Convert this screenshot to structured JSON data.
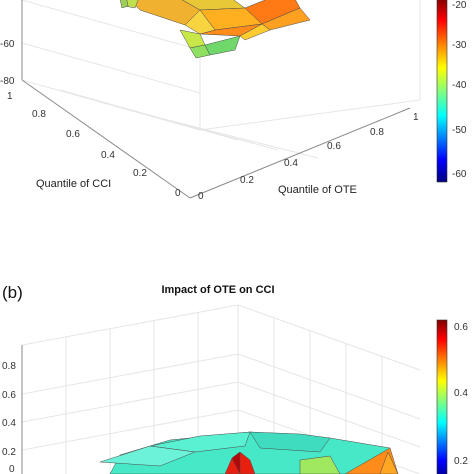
{
  "chart_data": [
    {
      "type": "surface",
      "panel_label": "",
      "title": "",
      "xlabel": "Quantile of OTE",
      "ylabel": "Quantile of CCI",
      "zlabel": "",
      "x_ticks": [
        "0",
        "0.2",
        "0.4",
        "0.6",
        "0.8",
        "1"
      ],
      "y_ticks": [
        "0",
        "0.2",
        "0.4",
        "0.6",
        "0.8",
        "1"
      ],
      "z_ticks": [
        "-60",
        "-80"
      ],
      "zlim": [
        -80,
        0
      ],
      "colorbar_ticks": [
        "-20",
        "-30",
        "-40",
        "-50",
        "-60"
      ],
      "colorbar_range": [
        -65,
        -15
      ],
      "colormap": "jet",
      "x": [
        0.05,
        0.1,
        0.15,
        0.2,
        0.25,
        0.3,
        0.35,
        0.4,
        0.45,
        0.5,
        0.55,
        0.6,
        0.65,
        0.7,
        0.75,
        0.8,
        0.85,
        0.9,
        0.95
      ],
      "y": [
        0.05,
        0.1,
        0.15,
        0.2,
        0.25,
        0.3,
        0.35,
        0.4,
        0.45,
        0.5,
        0.55,
        0.6,
        0.65,
        0.7,
        0.75,
        0.8,
        0.85,
        0.9,
        0.95
      ]
    },
    {
      "type": "surface",
      "panel_label": "(b)",
      "title": "Impact of OTE on CCI",
      "xlabel": "",
      "ylabel": "",
      "zlabel": "",
      "z_ticks": [
        "0.8",
        "0.6",
        "0.4",
        "0.2",
        "0"
      ],
      "zlim": [
        0,
        0.8
      ],
      "colorbar_ticks": [
        "0.6",
        "0.4",
        "0.2"
      ],
      "colorbar_range": [
        0.15,
        0.7
      ],
      "colormap": "jet",
      "x": [
        0.05,
        0.1,
        0.15,
        0.2,
        0.25,
        0.3,
        0.35,
        0.4,
        0.45,
        0.5,
        0.55,
        0.6,
        0.65,
        0.7,
        0.75,
        0.8,
        0.85,
        0.9,
        0.95
      ],
      "y": [
        0.05,
        0.1,
        0.15,
        0.2,
        0.25,
        0.3,
        0.35,
        0.4,
        0.45,
        0.5,
        0.55,
        0.6,
        0.65,
        0.7,
        0.75,
        0.8,
        0.85,
        0.9,
        0.95
      ]
    }
  ]
}
